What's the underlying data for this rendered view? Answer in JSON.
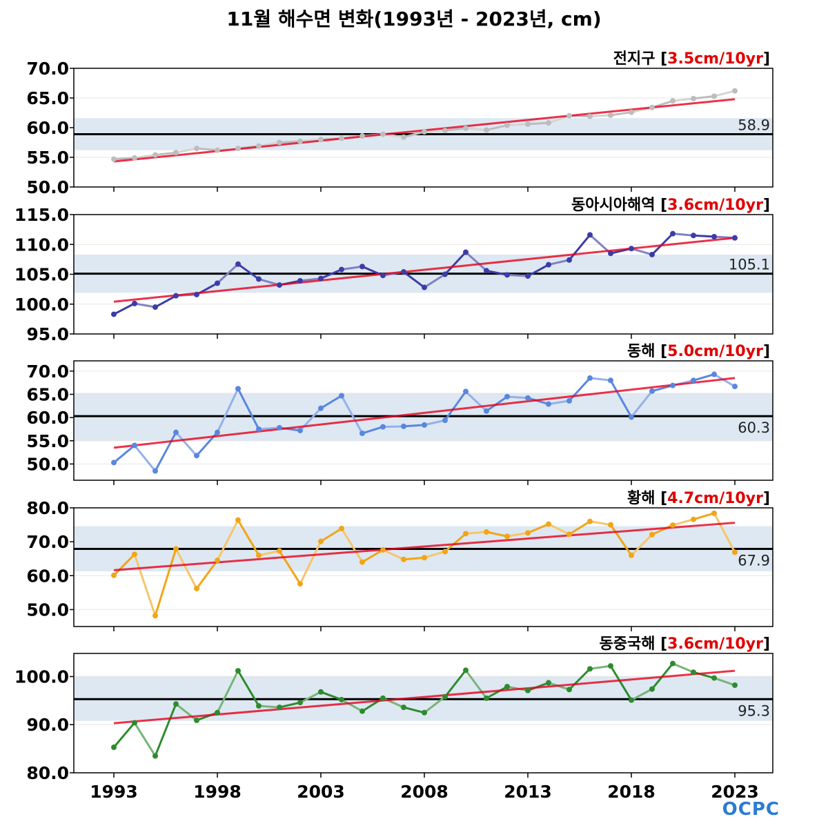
{
  "title": "11월 해수면 변화(1993년 - 2023년, cm)",
  "logo": "OCPC",
  "colors": {
    "trend": "#e8001c",
    "trend_label": "#e00000",
    "band": "#dde8f2",
    "mean_line": "#000000",
    "grid": "#e6e6e6"
  },
  "x_ticks": [
    1993,
    1998,
    2003,
    2008,
    2013,
    2018,
    2023
  ],
  "chart_data": [
    {
      "type": "line",
      "region": "전지구",
      "rate": "3.5cm/10yr",
      "color": "#bdbdbd",
      "years": [
        1993,
        1994,
        1995,
        1996,
        1997,
        1998,
        1999,
        2000,
        2001,
        2002,
        2003,
        2004,
        2005,
        2006,
        2007,
        2008,
        2009,
        2010,
        2011,
        2012,
        2013,
        2014,
        2015,
        2016,
        2017,
        2018,
        2019,
        2020,
        2021,
        2022,
        2023
      ],
      "values": [
        54.7,
        54.9,
        55.4,
        55.8,
        56.5,
        56.2,
        56.5,
        56.9,
        57.5,
        57.7,
        58.0,
        58.2,
        58.6,
        58.9,
        58.4,
        59.3,
        59.5,
        59.9,
        59.6,
        60.4,
        60.6,
        60.8,
        62.0,
        61.9,
        62.1,
        62.6,
        63.4,
        64.5,
        64.9,
        65.3,
        66.2
      ],
      "mean": 58.9,
      "band": [
        56.2,
        61.6
      ],
      "trend": [
        54.3,
        64.8
      ],
      "ylim": [
        50,
        70
      ],
      "yticks": [
        50,
        55,
        60,
        65,
        70
      ],
      "decimals": 1
    },
    {
      "type": "line",
      "region": "동아시아해역",
      "rate": "3.6cm/10yr",
      "color": "#3c3ca8",
      "years": [
        1993,
        1994,
        1995,
        1996,
        1997,
        1998,
        1999,
        2000,
        2001,
        2002,
        2003,
        2004,
        2005,
        2006,
        2007,
        2008,
        2009,
        2010,
        2011,
        2012,
        2013,
        2014,
        2015,
        2016,
        2017,
        2018,
        2019,
        2020,
        2021,
        2022,
        2023
      ],
      "values": [
        98.3,
        100.1,
        99.5,
        101.4,
        101.6,
        103.5,
        106.7,
        104.2,
        103.2,
        103.9,
        104.3,
        105.8,
        106.3,
        104.8,
        105.4,
        102.8,
        105.0,
        108.7,
        105.6,
        104.9,
        104.7,
        106.6,
        107.4,
        111.6,
        108.5,
        109.3,
        108.3,
        111.8,
        111.5,
        111.3,
        111.1
      ],
      "mean": 105.1,
      "band": [
        101.9,
        108.3
      ],
      "trend": [
        100.4,
        111.1
      ],
      "ylim": [
        95,
        115
      ],
      "yticks": [
        95,
        100,
        105,
        110,
        115
      ],
      "decimals": 1
    },
    {
      "type": "line",
      "region": "동해",
      "rate": "5.0cm/10yr",
      "color": "#5a86e0",
      "years": [
        1993,
        1994,
        1995,
        1996,
        1997,
        1998,
        1999,
        2000,
        2001,
        2002,
        2003,
        2004,
        2005,
        2006,
        2007,
        2008,
        2009,
        2010,
        2011,
        2012,
        2013,
        2014,
        2015,
        2016,
        2017,
        2018,
        2019,
        2020,
        2021,
        2022,
        2023
      ],
      "values": [
        50.3,
        54.0,
        48.5,
        56.8,
        51.8,
        56.8,
        66.2,
        57.5,
        57.8,
        57.2,
        62.0,
        64.7,
        56.6,
        58.0,
        58.1,
        58.4,
        59.4,
        65.6,
        61.4,
        64.5,
        64.2,
        62.9,
        63.6,
        68.5,
        68.0,
        60.1,
        65.7,
        66.9,
        68.0,
        69.3,
        66.7
      ],
      "mean": 60.3,
      "band": [
        55.0,
        65.3
      ],
      "trend": [
        53.5,
        68.5
      ],
      "ylim": [
        46.5,
        72.2
      ],
      "yticks": [
        50,
        55,
        60,
        65,
        70
      ],
      "decimals": 1
    },
    {
      "type": "line",
      "region": "황해",
      "rate": "4.7cm/10yr",
      "color": "#f2a516",
      "years": [
        1993,
        1994,
        1995,
        1996,
        1997,
        1998,
        1999,
        2000,
        2001,
        2002,
        2003,
        2004,
        2005,
        2006,
        2007,
        2008,
        2009,
        2010,
        2011,
        2012,
        2013,
        2014,
        2015,
        2016,
        2017,
        2018,
        2019,
        2020,
        2021,
        2022,
        2023
      ],
      "values": [
        60.1,
        66.3,
        48.2,
        67.9,
        56.2,
        64.5,
        76.4,
        66.0,
        67.3,
        57.6,
        70.1,
        73.9,
        64.0,
        67.6,
        64.8,
        65.3,
        67.1,
        72.4,
        72.9,
        71.6,
        72.6,
        75.2,
        72.2,
        76.0,
        75.0,
        66.0,
        72.1,
        74.9,
        76.6,
        78.4,
        66.9
      ],
      "mean": 67.9,
      "band": [
        61.3,
        74.6
      ],
      "trend": [
        61.6,
        75.6
      ],
      "ylim": [
        45,
        80
      ],
      "yticks": [
        50,
        60,
        70,
        80
      ],
      "decimals": 1
    },
    {
      "type": "line",
      "region": "동중국해",
      "rate": "3.6cm/10yr",
      "color": "#2e8b2e",
      "years": [
        1993,
        1994,
        1995,
        1996,
        1997,
        1998,
        1999,
        2000,
        2001,
        2002,
        2003,
        2004,
        2005,
        2006,
        2007,
        2008,
        2009,
        2010,
        2011,
        2012,
        2013,
        2014,
        2015,
        2016,
        2017,
        2018,
        2019,
        2020,
        2021,
        2022,
        2023
      ],
      "values": [
        85.3,
        90.4,
        83.5,
        94.3,
        90.9,
        92.5,
        101.2,
        93.9,
        93.6,
        94.6,
        96.8,
        95.2,
        92.8,
        95.5,
        93.6,
        92.5,
        95.8,
        101.3,
        95.5,
        97.9,
        97.1,
        98.7,
        97.3,
        101.6,
        102.2,
        95.1,
        97.4,
        102.7,
        100.9,
        99.7,
        98.2
      ],
      "mean": 95.3,
      "band": [
        90.8,
        100.1
      ],
      "trend": [
        90.3,
        101.2
      ],
      "ylim": [
        80,
        104.8
      ],
      "yticks": [
        80,
        90,
        100
      ],
      "decimals": 1
    }
  ]
}
